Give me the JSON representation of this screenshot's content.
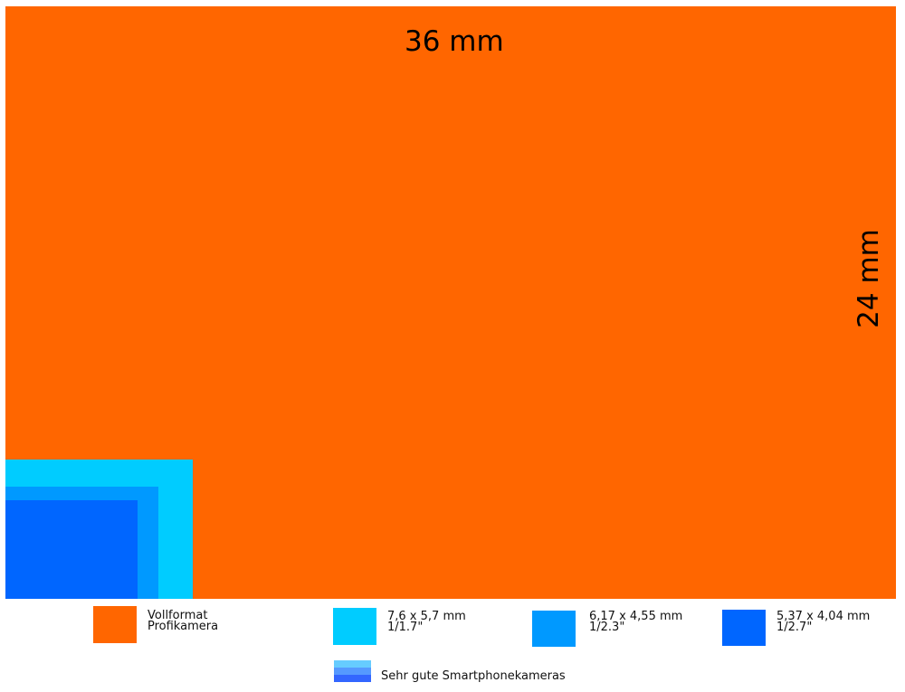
{
  "sensors": {
    "fullframe": {
      "color": "#ff6600",
      "width_label": "36 mm",
      "height_label": "24 mm"
    },
    "s1_1_7": {
      "color": "#00ccff"
    },
    "s1_2_3": {
      "color": "#0099ff"
    },
    "s1_2_7": {
      "color": "#0066ff"
    }
  },
  "legend": {
    "items": [
      {
        "color": "#ff6600",
        "line1": "Vollformat",
        "line2": "Profikamera"
      },
      {
        "color": "#00ccff",
        "line1": "7,6 x 5,7 mm",
        "line2": "1/1.7\""
      },
      {
        "color": "#0099ff",
        "line1": "6,17 x 4,55 mm",
        "line2": "1/2.3\""
      },
      {
        "color": "#0066ff",
        "line1": "5,37 x 4,04 mm",
        "line2": "1/2.7\""
      }
    ],
    "smartphone": {
      "label": "Sehr gute Smartphonekameras",
      "colors": [
        "#66ccff",
        "#5599ff",
        "#3366ff"
      ]
    }
  }
}
